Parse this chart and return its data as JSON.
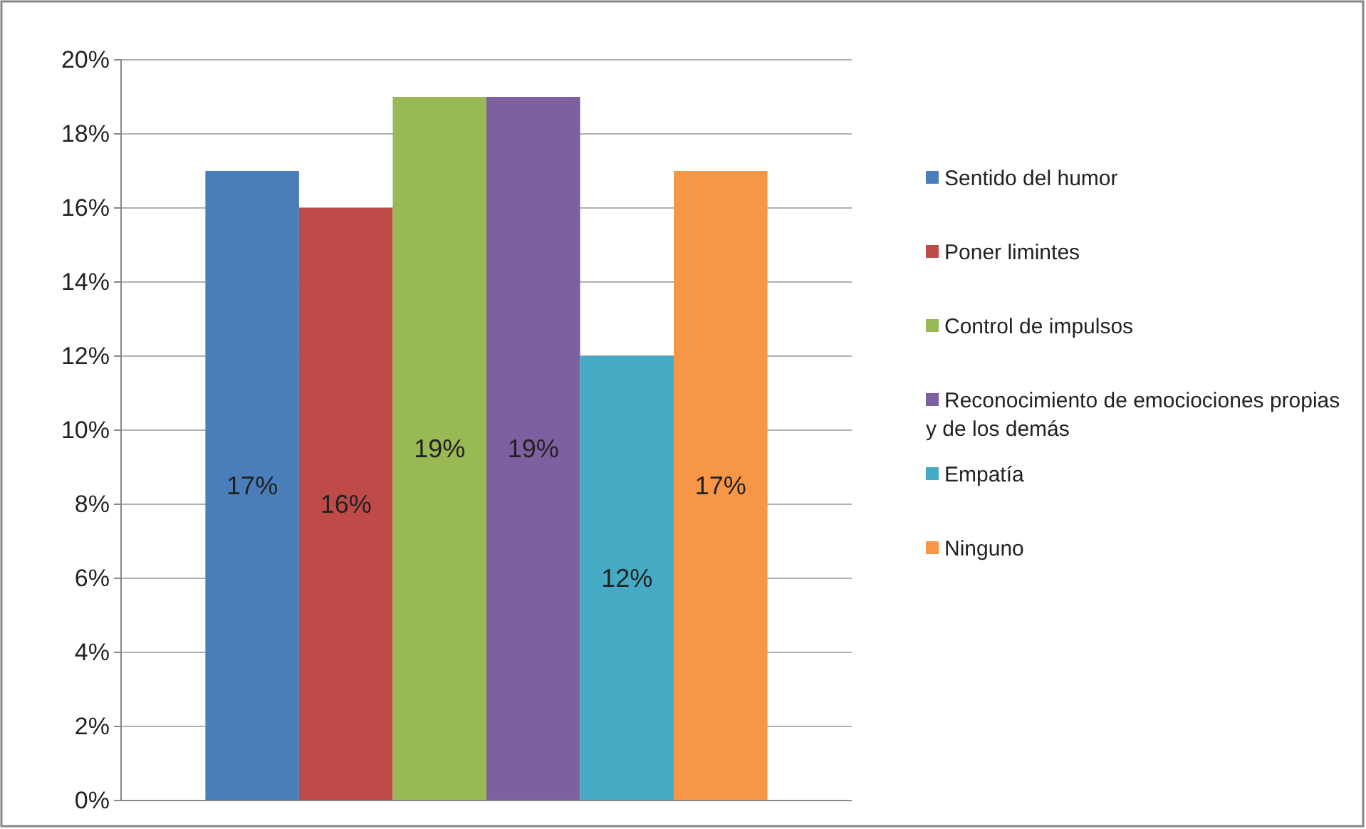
{
  "chart_data": {
    "type": "bar",
    "categories": [
      null
    ],
    "series": [
      {
        "name": "Sentido del humor",
        "color": "#4a7ebb",
        "values": [
          17
        ],
        "value_labels": [
          "17%"
        ]
      },
      {
        "name": "Poner limintes",
        "color": "#be4b48",
        "values": [
          16
        ],
        "value_labels": [
          "16%"
        ]
      },
      {
        "name": "Control de impulsos",
        "color": "#98b954",
        "values": [
          19
        ],
        "value_labels": [
          "19%"
        ]
      },
      {
        "name": "Reconocimiento de emociociones propias y de los demás",
        "color": "#7d60a0",
        "values": [
          19
        ],
        "value_labels": [
          "19%"
        ]
      },
      {
        "name": "Empatía",
        "color": "#46aac5",
        "values": [
          12
        ],
        "value_labels": [
          "12%"
        ]
      },
      {
        "name": "Ninguno",
        "color": "#f79646",
        "values": [
          17
        ],
        "value_labels": [
          "17%"
        ]
      }
    ],
    "ylim": [
      0,
      20
    ],
    "yticks": [
      {
        "value": 0,
        "label": "0%"
      },
      {
        "value": 2,
        "label": "2%"
      },
      {
        "value": 4,
        "label": "4%"
      },
      {
        "value": 6,
        "label": "6%"
      },
      {
        "value": 8,
        "label": "8%"
      },
      {
        "value": 10,
        "label": "10%"
      },
      {
        "value": 12,
        "label": "12%"
      },
      {
        "value": 14,
        "label": "14%"
      },
      {
        "value": 16,
        "label": "16%"
      },
      {
        "value": 18,
        "label": "18%"
      },
      {
        "value": 20,
        "label": "20%"
      }
    ],
    "grid": "y",
    "legend": "right"
  }
}
